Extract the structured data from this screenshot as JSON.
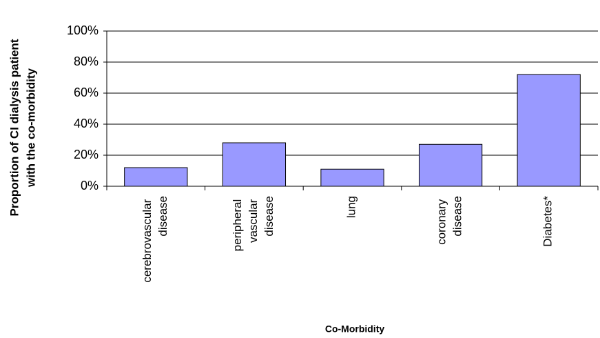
{
  "chart_data": {
    "type": "bar",
    "y_label": [
      "Proportion of CI dialysis patient",
      "with the co-morbidity"
    ],
    "x_label": "Co-Morbidity",
    "categories": [
      "cerebrovascular disease",
      "peripheral vascular disease",
      "lung",
      "coronary disease",
      "Diabetes*"
    ],
    "values": [
      12,
      28,
      11,
      27,
      72
    ],
    "color": "#9999ff",
    "ylim": [
      0,
      100
    ],
    "yticks": [
      {
        "value": 0,
        "label": "0%"
      },
      {
        "value": 20,
        "label": "20%"
      },
      {
        "value": 40,
        "label": "40%"
      },
      {
        "value": 60,
        "label": "60%"
      },
      {
        "value": 80,
        "label": "80%"
      },
      {
        "value": 100,
        "label": "100%"
      }
    ],
    "grid": true
  }
}
